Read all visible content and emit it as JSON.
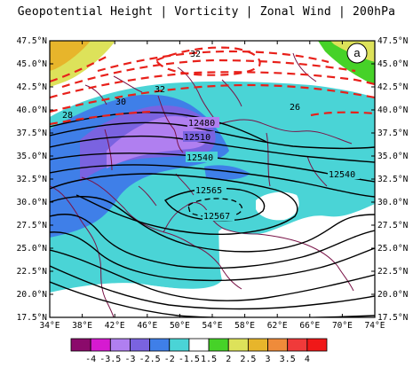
{
  "title": "Geopotential Height | Vorticity | Zonal Wind | 200hPa",
  "panel_label": "a",
  "lon_labels": [
    "34°E",
    "38°E",
    "42°E",
    "46°E",
    "50°E",
    "54°E",
    "58°E",
    "62°E",
    "66°E",
    "70°E",
    "74°E"
  ],
  "lat_labels": [
    "47.5°N",
    "45.0°N",
    "42.5°N",
    "40.0°N",
    "37.5°N",
    "35.0°N",
    "32.5°N",
    "30.0°N",
    "27.5°N",
    "25.0°N",
    "22.5°N",
    "20.0°N",
    "17.5°N"
  ],
  "height_contour_labels": [
    "12480",
    "12510",
    "12540",
    "12565",
    "12567",
    "12540"
  ],
  "wind_contour_labels": [
    "32",
    "32",
    "30",
    "28",
    "26"
  ],
  "colorbar": {
    "labels": [
      "-4",
      "-3.5",
      "-3",
      "-2.5",
      "-2",
      "-1.5",
      "1.5",
      "2",
      "2.5",
      "3",
      "3.5",
      "4"
    ],
    "colors": [
      "#8b0a6b",
      "#d61ad1",
      "#b07ff0",
      "#7a63e0",
      "#3f7fe8",
      "#4ad4d6",
      "#ffffff",
      "#46d228",
      "#dde25a",
      "#e7b52b",
      "#ef8b3a",
      "#f03a3a",
      "#f01818"
    ]
  },
  "colors": {
    "height_contour": "#000000",
    "wind_contour": "#e8201a",
    "coastline": "#7a1448"
  }
}
